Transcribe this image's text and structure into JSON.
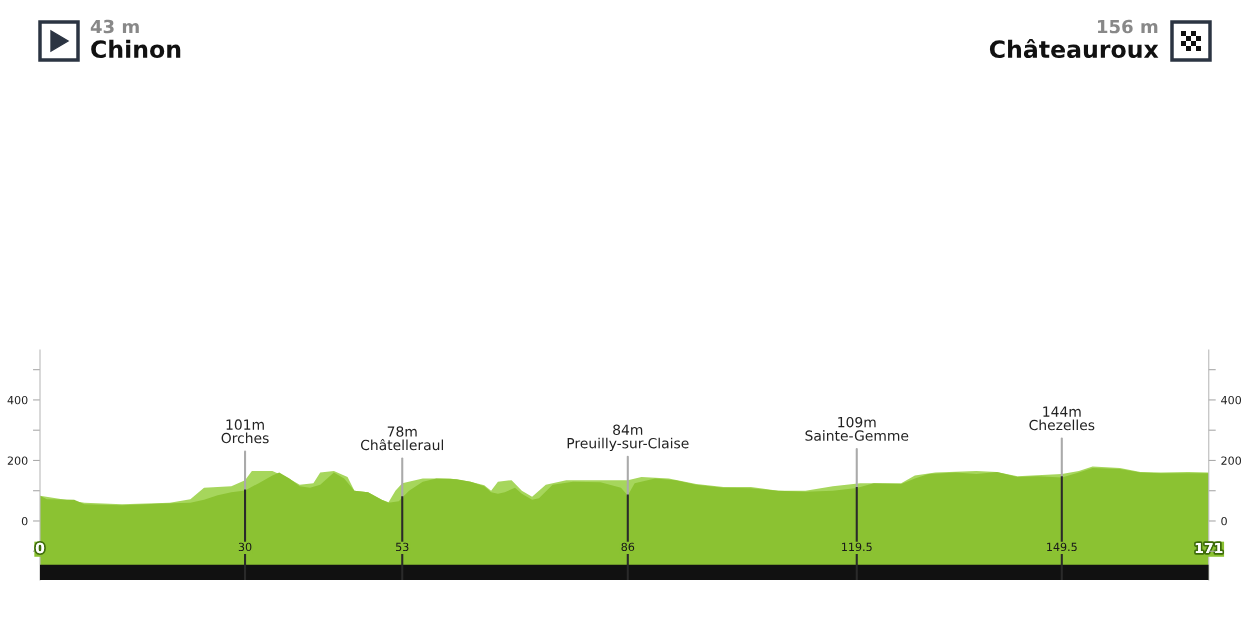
{
  "chart_data": {
    "type": "area",
    "annotations": [
      "43 m",
      "Chinon",
      "156 m",
      "Châteauroux",
      {
        "text": "101m\nOrches",
        "x": 30,
        "y": 101
      },
      {
        "text": "78m\nChâtelleraul",
        "x": 53,
        "y": 78
      },
      {
        "text": "84m\nPreuilly-sur-Claise",
        "x": 86,
        "y": 84
      },
      {
        "text": "109m\nSainte-Gemme",
        "x": 119.5,
        "y": 109
      },
      {
        "text": "144m\nChezelles",
        "x": 149.5,
        "y": 144
      }
    ],
    "series": [
      {
        "color": "#a6d65c",
        "x": [
          0,
          6.5,
          12,
          19,
          22,
          24,
          28,
          30,
          31,
          34,
          36,
          38,
          40,
          41,
          43,
          45,
          46,
          48,
          50,
          51,
          52,
          53,
          56,
          60,
          63,
          65,
          66,
          67,
          69,
          70.5,
          72,
          74,
          77,
          82,
          86,
          88,
          92,
          96,
          100,
          104,
          108,
          112,
          116,
          120,
          126,
          128,
          131,
          137,
          140,
          143,
          149.5,
          152,
          154,
          158,
          161,
          164,
          168,
          171
        ],
        "values": [
          83,
          60,
          55,
          60,
          72,
          110,
          115,
          135,
          165,
          165,
          145,
          120,
          125,
          160,
          165,
          145,
          100,
          95,
          70,
          62,
          100,
          125,
          140,
          140,
          130,
          118,
          100,
          130,
          135,
          100,
          80,
          120,
          135,
          135,
          135,
          145,
          140,
          122,
          112,
          112,
          100,
          100,
          115,
          125,
          125,
          150,
          160,
          165,
          162,
          148,
          155,
          165,
          180,
          175,
          162,
          160,
          162,
          160
        ]
      },
      {
        "color": "#8bc232",
        "x": [
          0,
          1,
          5,
          6.5,
          12,
          18,
          22,
          24,
          26,
          28,
          30,
          32,
          34,
          35,
          36.5,
          38,
          39.5,
          41,
          43,
          44.5,
          46,
          48,
          50,
          51,
          52.5,
          53,
          54,
          56,
          58,
          61,
          63,
          65,
          66,
          67,
          68,
          69.5,
          70.5,
          72,
          73,
          75,
          78,
          82,
          85,
          86,
          87,
          90,
          93,
          96,
          100,
          104,
          108,
          112,
          116,
          119.5,
          122,
          126,
          128,
          130,
          134,
          137,
          140,
          143,
          146,
          149.5,
          152,
          154,
          158,
          161,
          164,
          168,
          171
        ],
        "values": [
          83,
          72,
          70,
          55,
          52,
          58,
          60,
          70,
          85,
          95,
          101,
          125,
          150,
          160,
          140,
          115,
          110,
          120,
          160,
          140,
          100,
          95,
          70,
          60,
          65,
          78,
          100,
          130,
          140,
          138,
          130,
          115,
          95,
          90,
          95,
          110,
          90,
          70,
          75,
          120,
          130,
          128,
          110,
          84,
          125,
          140,
          135,
          120,
          110,
          108,
          100,
          97,
          100,
          109,
          125,
          122,
          140,
          155,
          160,
          155,
          162,
          145,
          148,
          144,
          160,
          175,
          172,
          160,
          158,
          158,
          158
        ]
      }
    ],
    "xlim": [
      0,
      171
    ],
    "xticks": [
      0,
      30,
      53,
      86,
      119.5,
      149.5,
      171
    ],
    "ylim": [
      -195,
      565
    ],
    "yticks": [
      {
        "value": -100,
        "label": null
      },
      0,
      {
        "value": 100,
        "label": null
      },
      200,
      {
        "value": 300,
        "label": null
      },
      400,
      {
        "value": 500,
        "label": null
      }
    ],
    "y2lim": [
      -195,
      565
    ],
    "y2ticks": [
      {
        "value": -100,
        "label": null
      },
      0,
      {
        "value": 100,
        "label": null
      },
      200,
      {
        "value": 300,
        "label": null
      },
      400,
      {
        "value": 500,
        "label": null
      }
    ],
    "bands": [
      {
        "axis": "y",
        "from": -195,
        "to": -145,
        "color": "#111111"
      }
    ],
    "grid": false,
    "legend": false
  }
}
